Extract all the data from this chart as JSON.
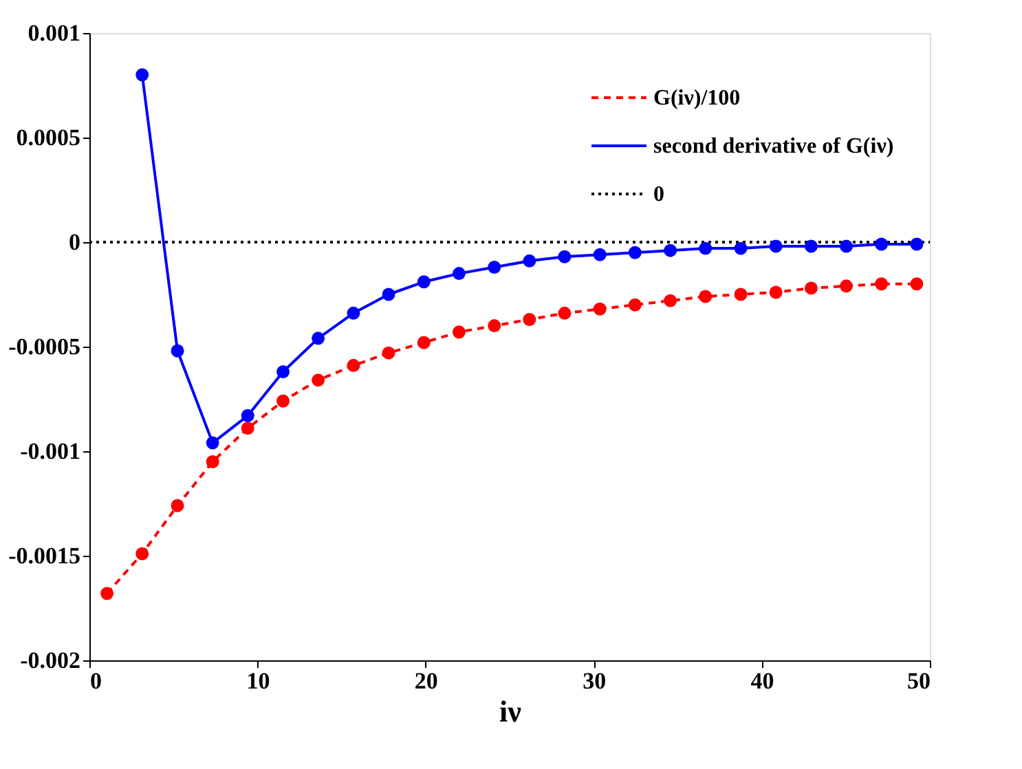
{
  "chart_data": {
    "type": "line",
    "xlabel": "iν",
    "xlim": [
      0,
      50
    ],
    "xticks": [
      0,
      10,
      20,
      30,
      40,
      50
    ],
    "ylim": [
      -0.002,
      0.001
    ],
    "yticks": [
      -0.002,
      -0.0015,
      -0.001,
      -0.0005,
      0,
      0.0005,
      0.001
    ],
    "grid": false,
    "legend": "top right",
    "marker": "circle",
    "series": [
      {
        "name": "G(iν)/100",
        "color": "#ff0000",
        "line_style": "dashed",
        "x": [
          1.047,
          3.14,
          5.24,
          7.33,
          9.42,
          11.52,
          13.61,
          15.71,
          17.8,
          19.9,
          21.99,
          24.09,
          26.18,
          28.27,
          30.37,
          32.46,
          34.56,
          36.65,
          38.75,
          40.84,
          42.94,
          45.03,
          47.12,
          49.22
        ],
        "values": [
          -0.00168,
          -0.00149,
          -0.00126,
          -0.00105,
          -0.00089,
          -0.00076,
          -0.00066,
          -0.00059,
          -0.00053,
          -0.00048,
          -0.00043,
          -0.0004,
          -0.00037,
          -0.00034,
          -0.00032,
          -0.0003,
          -0.00028,
          -0.00026,
          -0.00025,
          -0.00024,
          -0.00022,
          -0.00021,
          -0.0002,
          -0.0002
        ]
      },
      {
        "name": "second derivative of G(iν)",
        "color": "#0000ff",
        "line_style": "solid",
        "x": [
          3.14,
          5.24,
          7.33,
          9.42,
          11.52,
          13.61,
          15.71,
          17.8,
          19.9,
          21.99,
          24.09,
          26.18,
          28.27,
          30.37,
          32.46,
          34.56,
          36.65,
          38.75,
          40.84,
          42.94,
          45.03,
          47.12,
          49.22
        ],
        "values": [
          0.0008,
          -0.00052,
          -0.00096,
          -0.00083,
          -0.00062,
          -0.00046,
          -0.00034,
          -0.00025,
          -0.00019,
          -0.00015,
          -0.00012,
          -9e-05,
          -7e-05,
          -6e-05,
          -5e-05,
          -4e-05,
          -3e-05,
          -3e-05,
          -2e-05,
          -2e-05,
          -2e-05,
          -1e-05,
          -1e-05
        ]
      }
    ],
    "ref_lines": [
      {
        "axis": "y",
        "value": 0,
        "label": "0",
        "color": "#000000",
        "line_style": "dotted"
      }
    ]
  }
}
